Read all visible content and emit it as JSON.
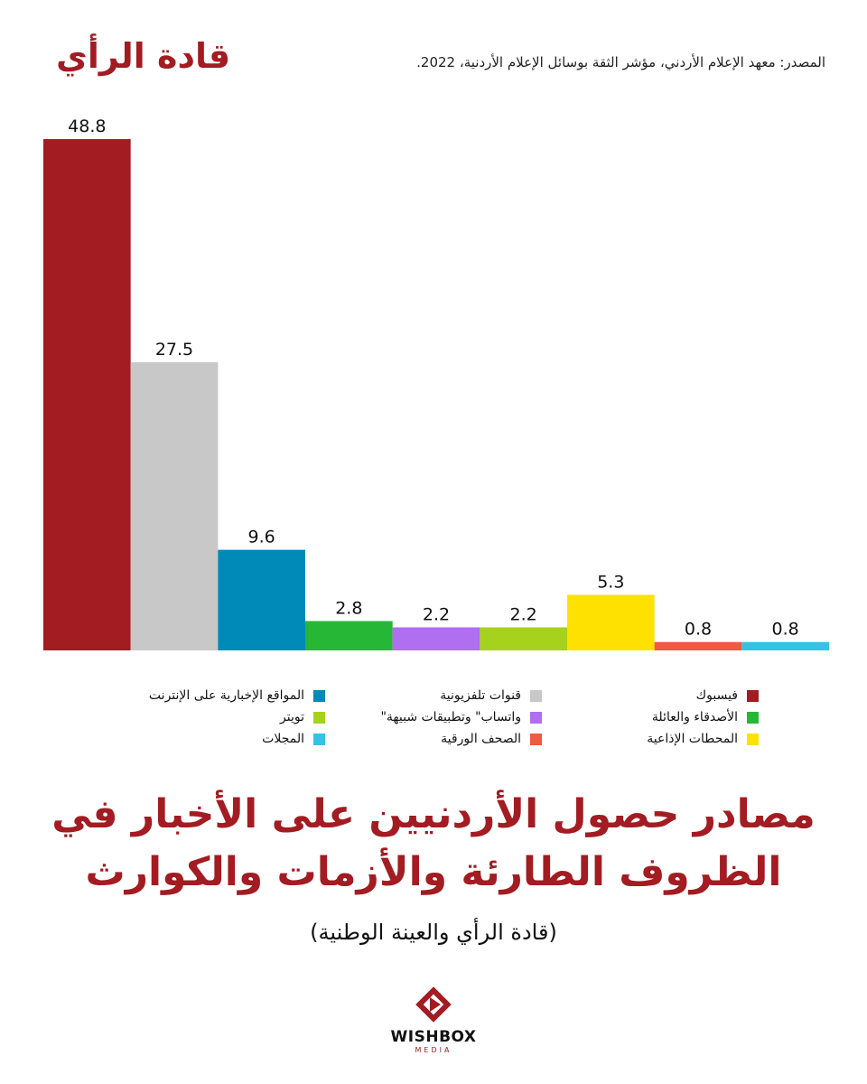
{
  "header": {
    "label": "قادة الرأي",
    "source": "المصدر: معهد الإعلام الأردني، مؤشر الثقة بوسائل الإعلام الأردنية، 2022."
  },
  "chart_data": {
    "type": "bar",
    "title": "مصادر حصول الأردنيين على الأخبار في الظروف الطارئة والأزمات والكوارث",
    "subtitle": "(قادة الرأي والعينة الوطنية)",
    "categories": [
      "فيسبوك",
      "قنوات تلفزيونية",
      "المواقع الإخبارية على الإنترنت",
      "الأصدقاء والعائلة",
      "واتساب\" وتطبيقات شبيهة\"",
      "تويتر",
      "المحطات الإذاعية",
      "الصحف الورقية",
      "المجلات"
    ],
    "values": [
      48.8,
      27.5,
      9.6,
      2.8,
      2.2,
      2.2,
      5.3,
      0.8,
      0.8
    ],
    "value_labels": [
      "48.8",
      "27.5",
      "9.6",
      "2.8",
      "2.2",
      "2.2",
      "5.3",
      "0.8",
      "0.8"
    ],
    "colors": [
      "#a21c22",
      "#c8c8c8",
      "#008ab8",
      "#27b737",
      "#b06ef0",
      "#a6d11c",
      "#ffe100",
      "#ef5a43",
      "#34c2e5"
    ],
    "ylim": [
      0,
      48.8
    ],
    "grid": false,
    "legend_position": "bottom"
  },
  "logo": {
    "name": "WISHBOX",
    "sub": "MEDIA"
  }
}
